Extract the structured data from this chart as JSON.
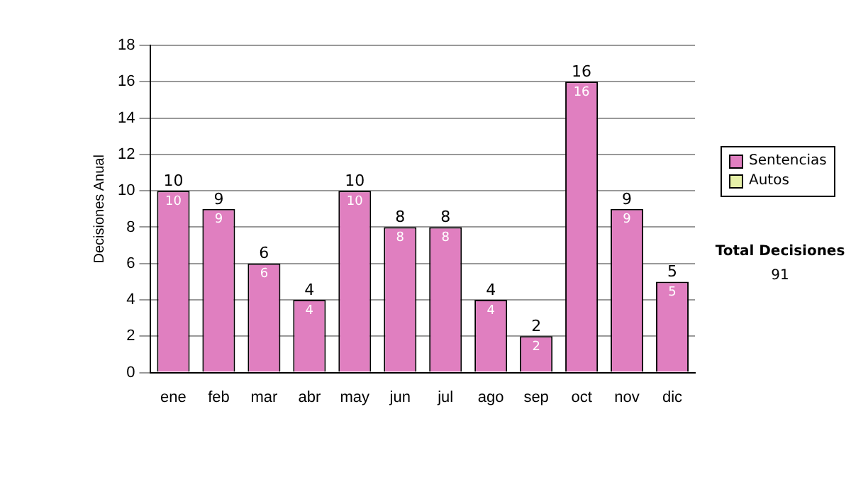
{
  "chart_data": {
    "type": "bar",
    "ylabel": "Decisiones Anual",
    "categories": [
      "ene",
      "feb",
      "mar",
      "abr",
      "may",
      "jun",
      "jul",
      "ago",
      "sep",
      "oct",
      "nov",
      "dic"
    ],
    "series": [
      {
        "name": "Sentencias",
        "color": "#e07fc0",
        "values": [
          10,
          9,
          6,
          4,
          10,
          8,
          8,
          4,
          2,
          16,
          9,
          5
        ],
        "value_labels": [
          "10",
          "9",
          "6",
          "4",
          "10",
          "8",
          "8",
          "4",
          "2",
          "16",
          "9",
          "5"
        ]
      },
      {
        "name": "Autos",
        "color": "#e6f0a8",
        "values": [
          0,
          0,
          0,
          0,
          0,
          0,
          0,
          0,
          0,
          0,
          0,
          0
        ]
      }
    ],
    "stacked": true,
    "ylim": [
      0,
      18
    ],
    "yticks": [
      0,
      2,
      4,
      6,
      8,
      10,
      12,
      14,
      16,
      18
    ],
    "grid": "y",
    "legend": "right",
    "totals": [
      "10",
      "9",
      "6",
      "4",
      "10",
      "8",
      "8",
      "4",
      "2",
      "16",
      "9",
      "5"
    ],
    "annotations": [
      "Total Decisiones",
      "91"
    ]
  }
}
